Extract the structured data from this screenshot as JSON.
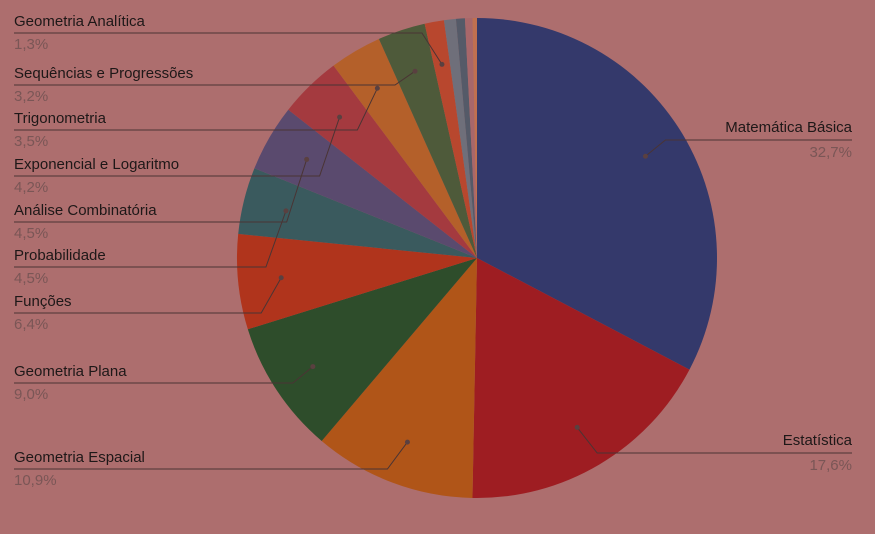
{
  "chart_data": {
    "type": "pie",
    "categories": [
      "Matemática Básica",
      "Estatística",
      "Geometria Espacial",
      "Geometria Plana",
      "Funções",
      "Probabilidade",
      "Análise Combinatória",
      "Exponencial e Logaritmo",
      "Trigonometria",
      "Sequências e Progressões",
      "Geometria Analítica",
      null,
      null,
      null,
      null
    ],
    "values": [
      32.7,
      17.6,
      10.9,
      9.0,
      6.4,
      4.5,
      4.5,
      4.2,
      3.5,
      3.2,
      1.3,
      0.8,
      0.6,
      0.5,
      0.3
    ],
    "value_labels": [
      "32,7%",
      "17,6%",
      "10,9%",
      "9,0%",
      "6,4%",
      "4,5%",
      "4,5%",
      "4,2%",
      "3,5%",
      "3,2%",
      "1,3%",
      null,
      null,
      null,
      null
    ],
    "colors": [
      "#34396b",
      "#9e1d22",
      "#b05518",
      "#2e4d2b",
      "#b0341c",
      "#3a5a5e",
      "#5a4a6e",
      "#a43a3f",
      "#b4602a",
      "#4e5a3a",
      "#b8472e",
      "#6f6f7a",
      "#555a68",
      "#a8676a",
      "#c07050"
    ]
  }
}
